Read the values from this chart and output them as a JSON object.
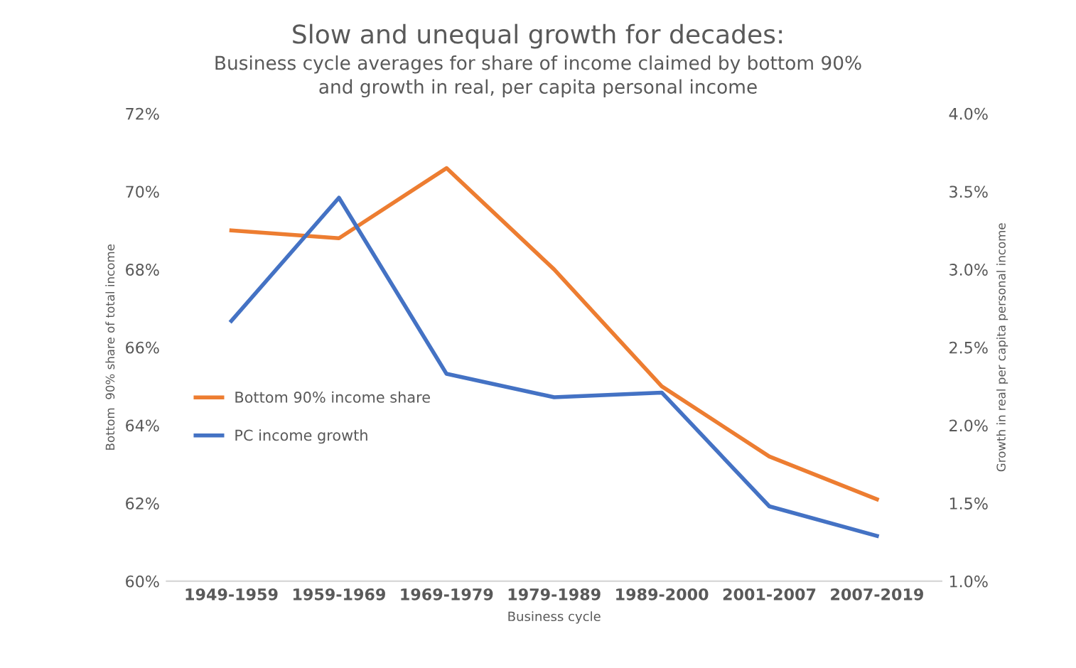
{
  "chart_data": {
    "type": "line",
    "title": "Slow and unequal growth for decades:",
    "subtitle": "Business cycle averages for share of income claimed by bottom 90%\nand growth in real, per capita personal income",
    "xlabel": "Business cycle",
    "ylabel": "Bottom  90% share of total income",
    "y2label": "Growth in real per capita personal income",
    "categories": [
      "1949-1959",
      "1959-1969",
      "1969-1979",
      "1979-1989",
      "1989-2000",
      "2001-2007",
      "2007-2019"
    ],
    "series": [
      {
        "name": "Bottom 90% income share",
        "color": "#ed7d31",
        "values": [
          69.0,
          68.8,
          70.6,
          68.0,
          65.0,
          63.2,
          62.1
        ]
      },
      {
        "name": "PC income growth",
        "color": "#4472c4",
        "axis": "y2",
        "values": [
          2.67,
          3.46,
          2.33,
          2.18,
          2.21,
          1.48,
          1.29
        ]
      }
    ],
    "ylim": [
      60,
      72
    ],
    "yticks": [
      {
        "value": 60,
        "label": "60%"
      },
      {
        "value": 62,
        "label": "62%"
      },
      {
        "value": 64,
        "label": "64%"
      },
      {
        "value": 66,
        "label": "66%"
      },
      {
        "value": 68,
        "label": "68%"
      },
      {
        "value": 70,
        "label": "70%"
      },
      {
        "value": 72,
        "label": "72%"
      }
    ],
    "y2lim": [
      1.0,
      4.0
    ],
    "y2ticks": [
      {
        "value": 1.0,
        "label": "1.0%"
      },
      {
        "value": 1.5,
        "label": "1.5%"
      },
      {
        "value": 2.0,
        "label": "2.0%"
      },
      {
        "value": 2.5,
        "label": "2.5%"
      },
      {
        "value": 3.0,
        "label": "3.0%"
      },
      {
        "value": 3.5,
        "label": "3.5%"
      },
      {
        "value": 4.0,
        "label": "4.0%"
      }
    ],
    "grid": false,
    "legend": "left",
    "marker": "none",
    "line_style": "solid"
  }
}
